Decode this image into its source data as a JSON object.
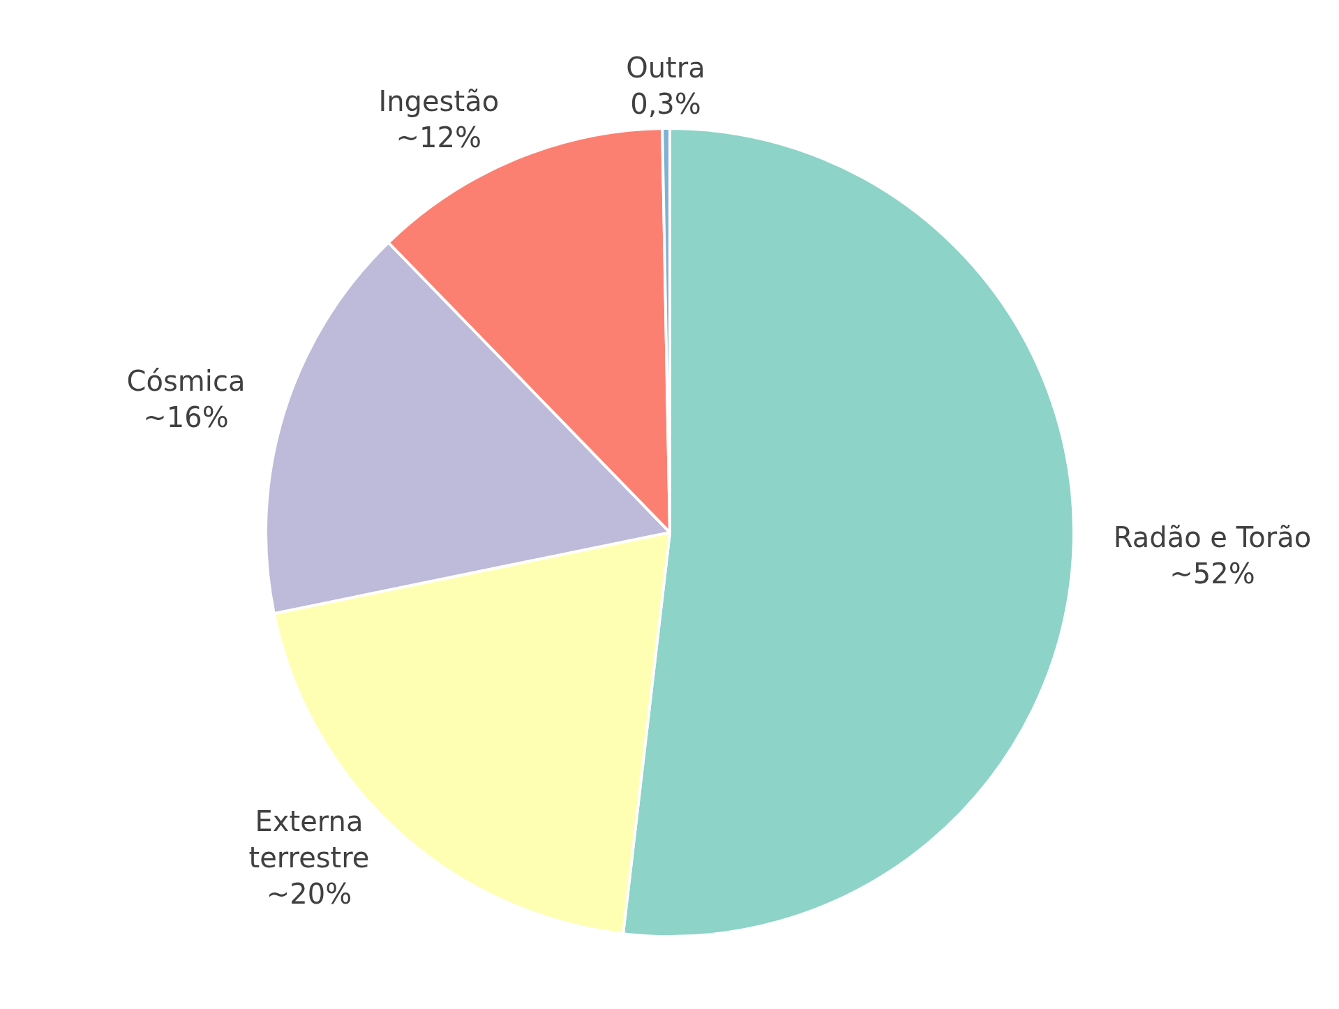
{
  "chart_data": {
    "type": "pie",
    "categories": [
      "Radão e Torão",
      "Externa terrestre",
      "Cósmica",
      "Ingestão",
      "Outra"
    ],
    "values": [
      52,
      20,
      16,
      12,
      0.3
    ],
    "value_labels": [
      "~52%",
      "~20%",
      "~16%",
      "~12%",
      "0,3%"
    ],
    "colors": [
      "#8dd3c7",
      "#ffffb3",
      "#bebada",
      "#fb8072",
      "#80b1d3"
    ],
    "legend": false
  }
}
